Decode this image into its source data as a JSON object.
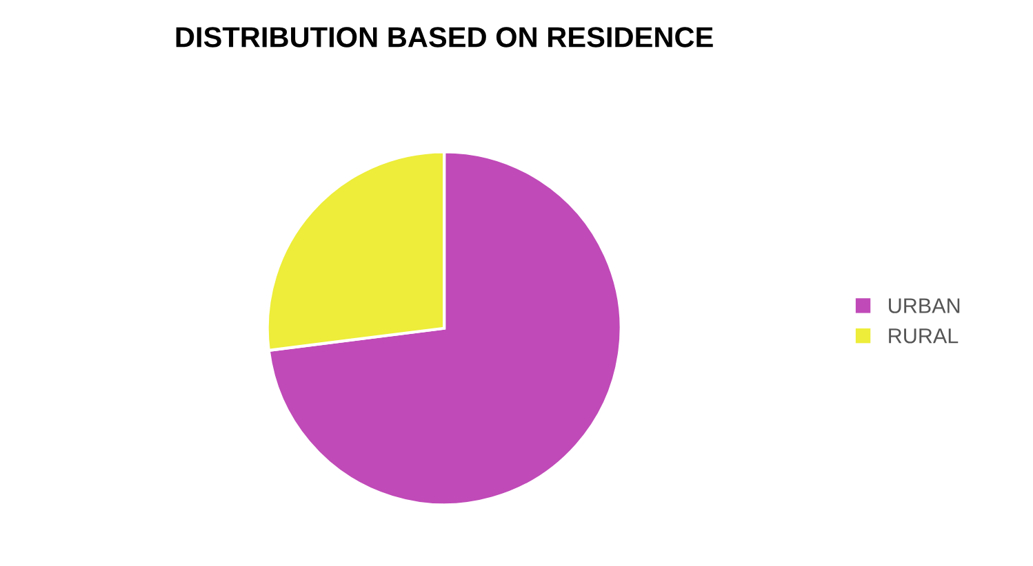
{
  "chart_data": {
    "type": "pie",
    "title": "DISTRIBUTION BASED ON RESIDENCE",
    "categories": [
      "URBAN",
      "RURAL"
    ],
    "values": [
      73,
      27
    ],
    "colors": [
      "#c04ab8",
      "#eded3a"
    ],
    "legend": "right"
  }
}
